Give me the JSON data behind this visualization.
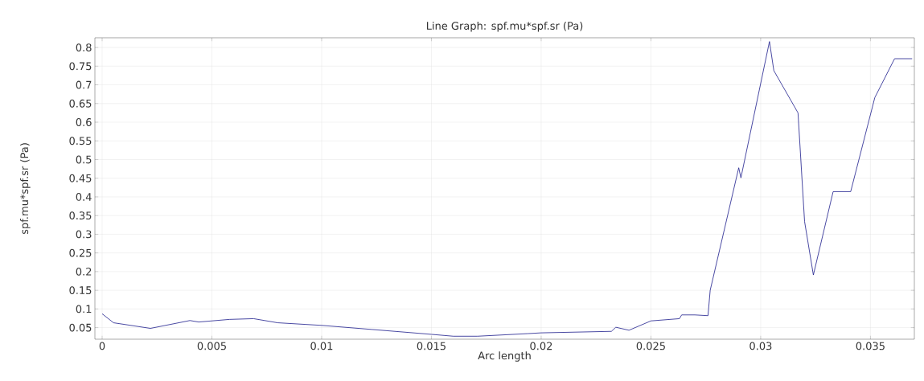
{
  "chart_data": {
    "type": "line",
    "title": "Line Graph: spf.mu*spf.sr (Pa)",
    "xlabel": "Arc length",
    "ylabel": "spf.mu*spf.sr (Pa)",
    "x": [
      0,
      0.00052,
      0.0022,
      0.004,
      0.0044,
      0.0058,
      0.0069,
      0.008,
      0.01,
      0.0123,
      0.015,
      0.016,
      0.0171,
      0.0194,
      0.02,
      0.0232,
      0.0234,
      0.024,
      0.025,
      0.0263,
      0.0264,
      0.027,
      0.0276,
      0.0277,
      0.029,
      0.0291,
      0.0304,
      0.0306,
      0.0317,
      0.032,
      0.0324,
      0.0333,
      0.0341,
      0.0352,
      0.0361,
      0.0369
    ],
    "series": [
      {
        "color": "#1c1c8c",
        "values": [
          0.087,
          0.063,
          0.048,
          0.069,
          0.065,
          0.072,
          0.074,
          0.063,
          0.056,
          0.045,
          0.032,
          0.027,
          0.027,
          0.034,
          0.036,
          0.04,
          0.051,
          0.043,
          0.068,
          0.074,
          0.084,
          0.084,
          0.082,
          0.15,
          0.478,
          0.451,
          0.816,
          0.738,
          0.625,
          0.334,
          0.191,
          0.414,
          0.414,
          0.666,
          0.77,
          0.77
        ]
      }
    ],
    "xlim": [
      -0.00033,
      0.037
    ],
    "ylim": [
      0.019,
      0.826
    ],
    "xticks": [
      0,
      0.005,
      0.01,
      0.015,
      0.02,
      0.025,
      0.03,
      0.035
    ],
    "yticks": [
      0.05,
      0.1,
      0.15,
      0.2,
      0.25,
      0.3,
      0.35,
      0.4,
      0.45,
      0.5,
      0.55,
      0.6,
      0.65,
      0.7,
      0.75,
      0.8
    ],
    "grid": true,
    "marker": "none",
    "line_style": "solid"
  }
}
